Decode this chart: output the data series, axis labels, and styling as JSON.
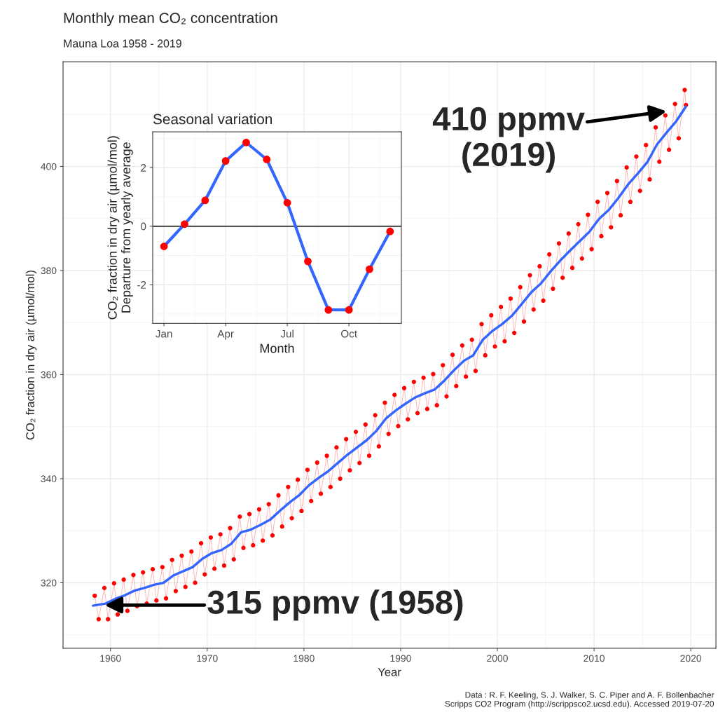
{
  "chart_data": [
    {
      "type": "line",
      "title": "Monthly mean CO₂ concentration",
      "subtitle": "Mauna Loa 1958 - 2019",
      "xlabel": "Year",
      "ylabel": "CO₂ fraction in dry air (µmol/mol)",
      "annotations": [
        {
          "text": "410 ppmv\n(2019)",
          "x": 2017.5,
          "y": 410.6
        },
        {
          "text": "315 ppmv (1958)",
          "x": 1959.4,
          "y": 315.7
        },
        "Data : R. F. Keeling, S. J. Walker, S. C. Piper and A. F. Bollenbacher\nScripps CO2 Program (http://scrippsco2.ucsd.edu). Accessed 2019-07-20"
      ],
      "series": [
        {
          "type": "line",
          "marker": "circle",
          "color": "#ff0000",
          "x": [
            1958.37,
            1958.78,
            1959.37,
            1959.75,
            1960.37,
            1960.75,
            1961.37,
            1961.75,
            1962.37,
            1962.75,
            1963.37,
            1963.75,
            1964.37,
            1964.75,
            1965.37,
            1965.75,
            1966.37,
            1966.75,
            1967.37,
            1967.75,
            1968.37,
            1968.75,
            1969.37,
            1969.75,
            1970.37,
            1970.75,
            1971.37,
            1971.75,
            1972.37,
            1972.75,
            1973.37,
            1973.75,
            1974.37,
            1974.75,
            1975.37,
            1975.75,
            1976.37,
            1976.75,
            1977.37,
            1977.75,
            1978.37,
            1978.75,
            1979.37,
            1979.75,
            1980.37,
            1980.75,
            1981.37,
            1981.75,
            1982.37,
            1982.75,
            1983.37,
            1983.75,
            1984.37,
            1984.75,
            1985.37,
            1985.75,
            1986.37,
            1986.75,
            1987.37,
            1987.75,
            1988.37,
            1988.75,
            1989.37,
            1989.75,
            1990.37,
            1990.75,
            1991.37,
            1991.75,
            1992.37,
            1992.75,
            1993.37,
            1993.75,
            1994.37,
            1994.75,
            1995.37,
            1995.75,
            1996.37,
            1996.75,
            1997.37,
            1997.75,
            1998.37,
            1998.75,
            1999.37,
            1999.75,
            2000.37,
            2000.75,
            2001.37,
            2001.75,
            2002.37,
            2002.75,
            2003.37,
            2003.75,
            2004.37,
            2004.75,
            2005.37,
            2005.75,
            2006.37,
            2006.75,
            2007.37,
            2007.75,
            2008.37,
            2008.75,
            2009.37,
            2009.75,
            2010.37,
            2010.75,
            2011.37,
            2011.75,
            2012.37,
            2012.75,
            2013.37,
            2013.75,
            2014.37,
            2014.75,
            2015.37,
            2015.75,
            2016.37,
            2016.75,
            2017.37,
            2017.75,
            2018.37,
            2018.75,
            2019.37,
            2019.5
          ],
          "values": [
            317.5,
            313.0,
            319.0,
            313.0,
            319.9,
            313.9,
            320.6,
            314.6,
            321.5,
            315.5,
            322.0,
            316.0,
            322.6,
            316.6,
            323.0,
            317.0,
            324.4,
            318.4,
            325.2,
            319.2,
            326.0,
            320.0,
            327.6,
            321.6,
            328.7,
            322.7,
            329.3,
            323.3,
            330.5,
            324.5,
            332.7,
            326.7,
            333.2,
            327.2,
            334.1,
            328.1,
            335.1,
            329.1,
            336.8,
            330.8,
            338.4,
            332.4,
            339.8,
            333.8,
            341.7,
            335.7,
            343.1,
            337.1,
            344.4,
            338.4,
            346.0,
            340.0,
            347.6,
            341.6,
            349.0,
            343.0,
            350.4,
            344.4,
            352.2,
            346.2,
            354.6,
            348.6,
            356.1,
            350.1,
            357.4,
            351.4,
            358.6,
            352.6,
            359.4,
            353.4,
            360.1,
            354.1,
            361.8,
            355.8,
            363.8,
            357.8,
            365.6,
            359.6,
            366.7,
            360.7,
            369.7,
            363.7,
            371.4,
            365.4,
            373.0,
            366.4,
            374.6,
            368.0,
            376.8,
            370.2,
            379.1,
            372.5,
            380.8,
            374.2,
            383.1,
            376.5,
            385.2,
            378.6,
            387.1,
            380.5,
            388.9,
            382.3,
            390.7,
            384.1,
            393.2,
            386.6,
            394.9,
            388.3,
            397.2,
            390.6,
            399.8,
            393.2,
            401.9,
            395.3,
            404.1,
            397.5,
            407.5,
            400.9,
            409.8,
            403.2,
            412.0,
            405.4,
            414.7,
            411.8
          ]
        },
        {
          "type": "line",
          "color": "#3366ff",
          "x": [
            1958.2,
            1959.5,
            1960.5,
            1961.5,
            1962.5,
            1963.5,
            1964.5,
            1965.5,
            1966.5,
            1967.5,
            1968.5,
            1969.5,
            1970.5,
            1971.5,
            1972.5,
            1973.5,
            1974.5,
            1975.5,
            1976.5,
            1977.5,
            1978.5,
            1979.5,
            1980.5,
            1981.5,
            1982.5,
            1983.5,
            1984.5,
            1985.5,
            1986.5,
            1987.5,
            1988.5,
            1989.5,
            1990.5,
            1991.5,
            1992.5,
            1993.5,
            1994.5,
            1995.5,
            1996.5,
            1997.5,
            1998.5,
            1999.5,
            2000.5,
            2001.5,
            2002.5,
            2003.5,
            2004.5,
            2005.5,
            2006.5,
            2007.5,
            2008.5,
            2009.5,
            2010.5,
            2011.5,
            2012.5,
            2013.5,
            2014.5,
            2015.5,
            2016.5,
            2017.5,
            2018.5,
            2019.5
          ],
          "values": [
            315.6,
            316.0,
            316.9,
            317.6,
            318.5,
            319.0,
            319.6,
            320.0,
            321.4,
            322.2,
            323.0,
            324.6,
            325.7,
            326.3,
            327.5,
            329.7,
            330.2,
            331.1,
            332.1,
            333.8,
            335.4,
            336.8,
            338.7,
            340.1,
            341.4,
            343.0,
            344.6,
            346.0,
            347.4,
            349.2,
            351.6,
            353.1,
            354.4,
            355.6,
            356.4,
            357.1,
            358.8,
            360.8,
            362.6,
            363.7,
            366.7,
            368.4,
            369.7,
            371.3,
            373.5,
            375.8,
            377.5,
            379.8,
            381.9,
            383.8,
            385.6,
            387.4,
            389.9,
            391.6,
            393.9,
            396.5,
            398.6,
            400.8,
            404.2,
            406.5,
            408.7,
            411.5
          ]
        }
      ],
      "xlim": [
        1955.1,
        2022.6
      ],
      "ylim": [
        307.4,
        420.1
      ],
      "xticks": [
        1960,
        1970,
        1980,
        1990,
        2000,
        2010,
        2020
      ],
      "yticks": [
        320,
        340,
        360,
        380,
        400
      ],
      "grid": true
    },
    {
      "type": "line",
      "title": "Seasonal variation",
      "xlabel": "Month",
      "ylabel": "CO₂ fraction in dry air (µmol/mol)\nDeparture from yearly average",
      "categories": [
        "Jan",
        null,
        null,
        "Apr",
        null,
        null,
        "Jul",
        null,
        null,
        "Oct",
        null,
        null
      ],
      "series": [
        {
          "type": "line",
          "color": "#3366ff",
          "values": [
            -0.69,
            0.07,
            0.88,
            2.23,
            2.86,
            2.28,
            0.8,
            -1.2,
            -2.86,
            -2.86,
            -1.47,
            -0.18
          ]
        },
        {
          "type": "scatter",
          "color": "#ff0000",
          "values": [
            -0.69,
            0.07,
            0.88,
            2.23,
            2.86,
            2.28,
            0.8,
            -1.2,
            -2.86,
            -2.86,
            -1.47,
            -0.18
          ]
        }
      ],
      "ref_lines": [
        {
          "axis": "y",
          "value": 0,
          "color": "#000000"
        }
      ],
      "ylim": [
        -3.32,
        3.22
      ],
      "yticks": [
        -2,
        0,
        2
      ],
      "grid": true
    }
  ]
}
